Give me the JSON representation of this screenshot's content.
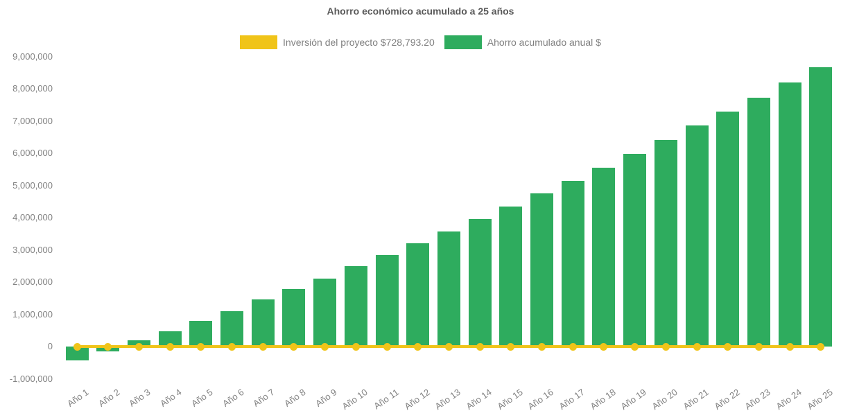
{
  "chart_data": {
    "type": "bar",
    "title": "Ahorro económico acumulado a 25 años",
    "categories": [
      "Año 1",
      "Año 2",
      "Año 3",
      "Año 4",
      "Año 5",
      "Año 6",
      "Año 7",
      "Año 8",
      "Año 9",
      "Año 10",
      "Año 11",
      "Año 12",
      "Año 13",
      "Año 14",
      "Año 15",
      "Año 16",
      "Año 17",
      "Año 18",
      "Año 19",
      "Año 20",
      "Año 21",
      "Año 22",
      "Año 23",
      "Año 24",
      "Año 25"
    ],
    "series": [
      {
        "name": "Inversión del proyecto $728,793.20",
        "type": "line",
        "color": "#F0C419",
        "values": [
          0,
          0,
          0,
          0,
          0,
          0,
          0,
          0,
          0,
          0,
          0,
          0,
          0,
          0,
          0,
          0,
          0,
          0,
          0,
          0,
          0,
          0,
          0,
          0,
          0
        ]
      },
      {
        "name": "Ahorro acumulado anual $",
        "type": "bar",
        "color": "#2EAC5E",
        "values": [
          -430000,
          -150000,
          190000,
          470000,
          800000,
          1090000,
          1460000,
          1790000,
          2110000,
          2490000,
          2840000,
          3210000,
          3580000,
          3950000,
          4340000,
          4750000,
          5140000,
          5550000,
          5980000,
          6410000,
          6850000,
          7280000,
          7730000,
          8190000,
          8660000
        ]
      }
    ],
    "ylim": [
      -1000000,
      9000000
    ],
    "ytick_step": 1000000,
    "ytick_labels": [
      "-1,000,000",
      "0",
      "1,000,000",
      "2,000,000",
      "3,000,000",
      "4,000,000",
      "5,000,000",
      "6,000,000",
      "7,000,000",
      "8,000,000",
      "9,000,000"
    ],
    "grid": false,
    "legend_position": "top",
    "colors": {
      "title_text": "#595959",
      "axis_labels": "#828282",
      "background": "#FFFFFF"
    }
  }
}
